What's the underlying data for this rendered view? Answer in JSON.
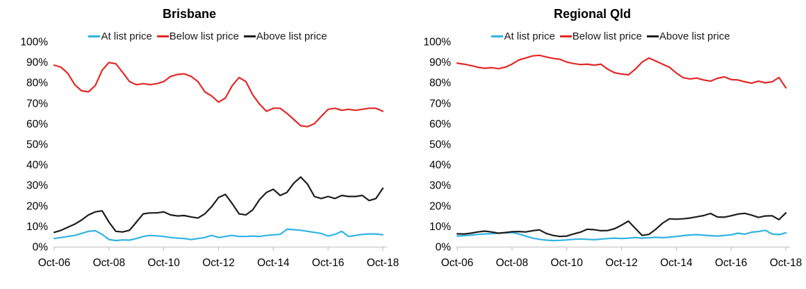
{
  "text_color": "#000000",
  "axis_color": "#c9c9c9",
  "chart_data": [
    {
      "type": "line",
      "title": "Brisbane",
      "legend_position": "top",
      "grid": false,
      "x_range": [
        2006.75,
        2018.75
      ],
      "y_range": [
        0,
        100
      ],
      "y_tick_labels": [
        "100%",
        "90%",
        "80%",
        "70%",
        "60%",
        "50%",
        "40%",
        "30%",
        "20%",
        "10%",
        "0%"
      ],
      "x_tick_labels": [
        "Oct-06",
        "Oct-08",
        "Oct-10",
        "Oct-12",
        "Oct-14",
        "Oct-16",
        "Oct-18"
      ],
      "x": [
        2006.75,
        2007.0,
        2007.25,
        2007.5,
        2007.75,
        2008.0,
        2008.25,
        2008.5,
        2008.75,
        2009.0,
        2009.25,
        2009.5,
        2009.75,
        2010.0,
        2010.25,
        2010.5,
        2010.75,
        2011.0,
        2011.25,
        2011.5,
        2011.75,
        2012.0,
        2012.25,
        2012.5,
        2012.75,
        2013.0,
        2013.25,
        2013.5,
        2013.75,
        2014.0,
        2014.25,
        2014.5,
        2014.75,
        2015.0,
        2015.25,
        2015.5,
        2015.75,
        2016.0,
        2016.25,
        2016.5,
        2016.75,
        2017.0,
        2017.25,
        2017.5,
        2017.75,
        2018.0,
        2018.25,
        2018.5,
        2018.75
      ],
      "series": [
        {
          "name": "At list price",
          "color": "#2fb3e3",
          "values": [
            4.0,
            4.5,
            5.0,
            5.5,
            6.5,
            7.5,
            7.8,
            6.0,
            3.5,
            3.0,
            3.3,
            3.2,
            4.0,
            5.0,
            5.5,
            5.3,
            5.0,
            4.5,
            4.2,
            4.0,
            3.5,
            4.0,
            4.5,
            5.5,
            4.5,
            5.0,
            5.5,
            5.0,
            5.0,
            5.2,
            5.0,
            5.5,
            5.8,
            6.0,
            8.5,
            8.3,
            8.0,
            7.5,
            7.0,
            6.5,
            5.2,
            6.0,
            7.5,
            5.0,
            5.5,
            6.0,
            6.2,
            6.2,
            5.8
          ]
        },
        {
          "name": "Below list price",
          "color": "#e32726",
          "values": [
            88.5,
            87.5,
            84.5,
            79.0,
            76.0,
            75.5,
            78.5,
            86.0,
            89.8,
            89.2,
            85.0,
            80.5,
            79.0,
            79.5,
            79.0,
            79.5,
            80.5,
            83.0,
            84.0,
            84.3,
            83.0,
            80.5,
            75.5,
            73.5,
            70.5,
            72.5,
            78.5,
            82.5,
            80.5,
            74.0,
            69.5,
            66.0,
            67.5,
            67.5,
            65.0,
            62.0,
            59.0,
            58.5,
            60.0,
            63.5,
            67.0,
            67.5,
            66.5,
            67.0,
            66.5,
            67.0,
            67.5,
            67.5,
            66.0
          ]
        },
        {
          "name": "Above list price",
          "color": "#1c1c1c",
          "values": [
            7.0,
            8.0,
            9.5,
            11.0,
            13.0,
            15.5,
            17.0,
            17.5,
            12.0,
            7.5,
            7.2,
            8.0,
            12.0,
            16.0,
            16.5,
            16.5,
            17.0,
            15.5,
            15.0,
            15.2,
            14.5,
            14.0,
            16.0,
            19.5,
            24.0,
            25.5,
            21.0,
            16.0,
            15.5,
            18.0,
            23.0,
            26.5,
            28.0,
            25.0,
            26.5,
            31.0,
            34.0,
            30.5,
            24.5,
            23.5,
            24.5,
            23.5,
            25.0,
            24.5,
            24.5,
            25.0,
            22.5,
            23.5,
            28.5
          ]
        }
      ]
    },
    {
      "type": "line",
      "title": "Regional Qld",
      "legend_position": "top",
      "grid": false,
      "x_range": [
        2006.75,
        2018.75
      ],
      "y_range": [
        0,
        100
      ],
      "y_tick_labels": [
        "100%",
        "90%",
        "80%",
        "70%",
        "60%",
        "50%",
        "40%",
        "30%",
        "20%",
        "10%",
        "0%"
      ],
      "x_tick_labels": [
        "Oct-06",
        "Oct-08",
        "Oct-10",
        "Oct-12",
        "Oct-14",
        "Oct-16",
        "Oct-18"
      ],
      "x": [
        2006.75,
        2007.0,
        2007.25,
        2007.5,
        2007.75,
        2008.0,
        2008.25,
        2008.5,
        2008.75,
        2009.0,
        2009.25,
        2009.5,
        2009.75,
        2010.0,
        2010.25,
        2010.5,
        2010.75,
        2011.0,
        2011.25,
        2011.5,
        2011.75,
        2012.0,
        2012.25,
        2012.5,
        2012.75,
        2013.0,
        2013.25,
        2013.5,
        2013.75,
        2014.0,
        2014.25,
        2014.5,
        2014.75,
        2015.0,
        2015.25,
        2015.5,
        2015.75,
        2016.0,
        2016.25,
        2016.5,
        2016.75,
        2017.0,
        2017.25,
        2017.5,
        2017.75,
        2018.0,
        2018.25,
        2018.5,
        2018.75
      ],
      "series": [
        {
          "name": "At list price",
          "color": "#2fb3e3",
          "values": [
            5.2,
            5.4,
            5.6,
            6.0,
            6.2,
            6.4,
            6.6,
            6.8,
            6.9,
            6.2,
            5.2,
            4.2,
            3.6,
            3.2,
            3.0,
            3.1,
            3.3,
            3.6,
            3.8,
            3.6,
            3.4,
            3.7,
            4.0,
            4.2,
            4.0,
            4.2,
            4.5,
            4.2,
            4.4,
            4.6,
            4.4,
            4.7,
            5.0,
            5.4,
            5.7,
            5.9,
            5.6,
            5.4,
            5.2,
            5.5,
            5.8,
            6.6,
            6.1,
            7.1,
            7.4,
            8.0,
            6.2,
            5.9,
            6.8
          ]
        },
        {
          "name": "Below list price",
          "color": "#e32726",
          "values": [
            89.5,
            89.0,
            88.3,
            87.5,
            87.0,
            87.3,
            86.8,
            87.5,
            89.0,
            91.0,
            92.0,
            93.0,
            93.3,
            92.5,
            91.8,
            91.4,
            90.0,
            89.3,
            88.8,
            89.0,
            88.5,
            89.0,
            86.5,
            84.8,
            84.2,
            83.8,
            86.5,
            90.0,
            92.0,
            90.5,
            89.0,
            87.5,
            84.7,
            82.4,
            81.8,
            82.2,
            81.3,
            80.7,
            82.1,
            82.8,
            81.5,
            81.3,
            80.4,
            79.7,
            80.7,
            79.9,
            80.4,
            82.5,
            77.5
          ]
        },
        {
          "name": "Above list price",
          "color": "#1c1c1c",
          "values": [
            6.3,
            6.2,
            6.6,
            7.2,
            7.6,
            7.2,
            6.6,
            6.9,
            7.3,
            7.4,
            7.2,
            7.8,
            8.2,
            6.5,
            5.5,
            5.0,
            5.2,
            6.2,
            7.1,
            8.5,
            8.3,
            7.8,
            7.9,
            8.8,
            10.5,
            12.5,
            9.0,
            5.5,
            6.0,
            8.5,
            11.5,
            13.6,
            13.4,
            13.6,
            14.0,
            14.6,
            15.2,
            16.2,
            14.5,
            14.4,
            15.1,
            15.9,
            16.3,
            15.4,
            14.3,
            15.0,
            15.1,
            13.2,
            16.5
          ]
        }
      ]
    }
  ]
}
